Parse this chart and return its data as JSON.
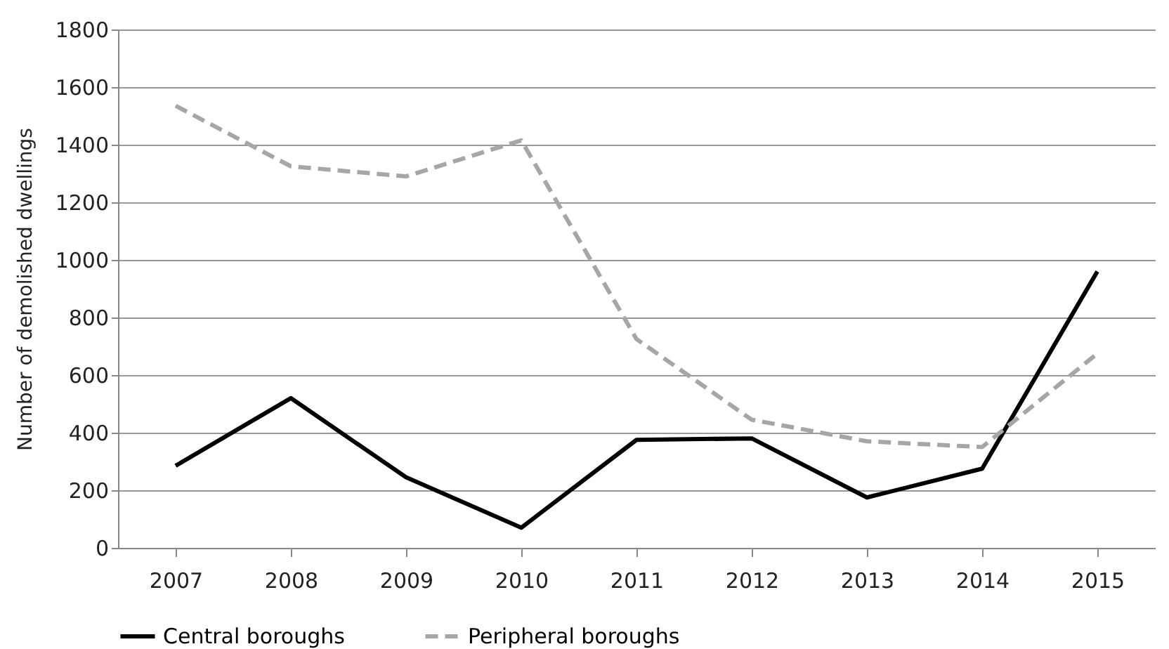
{
  "chart_data": {
    "type": "line",
    "ylabel": "Number of demolished dwellings",
    "categories": [
      "2007",
      "2008",
      "2009",
      "2010",
      "2011",
      "2012",
      "2013",
      "2014",
      "2015"
    ],
    "series": [
      {
        "name": "Central boroughs",
        "color": "#000000",
        "line_style": "solid",
        "values": [
          285,
          520,
          245,
          70,
          375,
          380,
          175,
          275,
          960
        ]
      },
      {
        "name": "Peripheral boroughs",
        "color": "#a6a6a6",
        "line_style": "dashed",
        "values": [
          1535,
          1325,
          1290,
          1415,
          725,
          445,
          370,
          350,
          675
        ]
      }
    ],
    "ylim": [
      0,
      1800
    ],
    "yticks": [
      0,
      200,
      400,
      600,
      800,
      1000,
      1200,
      1400,
      1600,
      1800
    ],
    "grid": "y",
    "legend": "bottom",
    "marker": "none"
  }
}
